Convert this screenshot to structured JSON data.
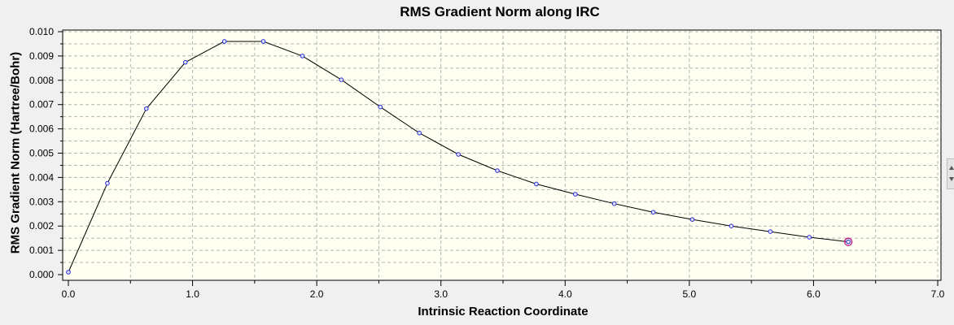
{
  "chart_data": {
    "type": "scatter",
    "title": "RMS Gradient Norm along IRC",
    "xlabel": "Intrinsic Reaction Coordinate",
    "ylabel": "RMS Gradient Norm (Hartree/Bohr)",
    "xlim": [
      0.0,
      7.0
    ],
    "ylim": [
      0.0,
      0.01
    ],
    "xticks": [
      "0.0",
      "1.0",
      "2.0",
      "3.0",
      "4.0",
      "5.0",
      "6.0",
      "7.0"
    ],
    "yticks": [
      "0.000",
      "0.001",
      "0.002",
      "0.003",
      "0.004",
      "0.005",
      "0.006",
      "0.007",
      "0.008",
      "0.009",
      "0.010"
    ],
    "grid": true,
    "x": [
      0.0,
      0.314,
      0.628,
      0.942,
      1.256,
      1.57,
      1.884,
      2.198,
      2.512,
      2.826,
      3.14,
      3.454,
      3.768,
      4.082,
      4.396,
      4.71,
      5.024,
      5.338,
      5.652,
      5.966,
      6.28
    ],
    "y": [
      0.0001,
      0.00376,
      0.00683,
      0.00874,
      0.0096,
      0.0096,
      0.009,
      0.00802,
      0.0069,
      0.00583,
      0.00495,
      0.00428,
      0.00373,
      0.00331,
      0.00292,
      0.00257,
      0.00227,
      0.002,
      0.00177,
      0.00154,
      0.00135
    ],
    "highlight_index": 20,
    "colors": {
      "line": "#000000",
      "marker": "#2a2ad8",
      "highlight": "#c0208a",
      "plot_bg": "#fffff2",
      "grid": "#b4b4b4"
    }
  }
}
